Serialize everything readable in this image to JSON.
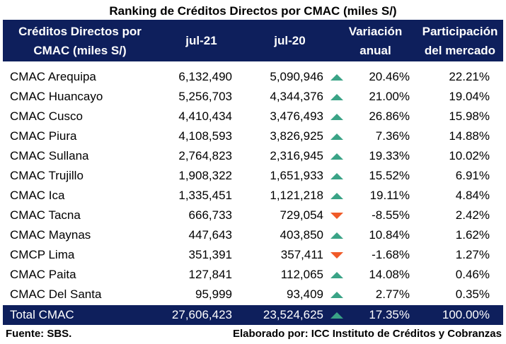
{
  "title": "Ranking de Créditos Directos por CMAC (miles S/)",
  "columns": {
    "name_line1": "Créditos Directos por",
    "name_line2": "CMAC (miles S/)",
    "jul21": "jul-21",
    "jul20": "jul-20",
    "var_line1": "Variación",
    "var_line2": "anual",
    "part_line1": "Participación",
    "part_line2": "del mercado"
  },
  "colors": {
    "header_bg": "#0e1f5c",
    "up": "#3aa386",
    "down": "#f05a28"
  },
  "rows": [
    {
      "name": "CMAC Arequipa",
      "jul21": "6,132,490",
      "jul20": "5,090,946",
      "trend": "up",
      "variation": "20.46%",
      "share": "22.21%"
    },
    {
      "name": "CMAC Huancayo",
      "jul21": "5,256,703",
      "jul20": "4,344,376",
      "trend": "up",
      "variation": "21.00%",
      "share": "19.04%"
    },
    {
      "name": "CMAC Cusco",
      "jul21": "4,410,434",
      "jul20": "3,476,493",
      "trend": "up",
      "variation": "26.86%",
      "share": "15.98%"
    },
    {
      "name": "CMAC Piura",
      "jul21": "4,108,593",
      "jul20": "3,826,925",
      "trend": "up",
      "variation": "7.36%",
      "share": "14.88%"
    },
    {
      "name": "CMAC Sullana",
      "jul21": "2,764,823",
      "jul20": "2,316,945",
      "trend": "up",
      "variation": "19.33%",
      "share": "10.02%"
    },
    {
      "name": "CMAC Trujillo",
      "jul21": "1,908,322",
      "jul20": "1,651,933",
      "trend": "up",
      "variation": "15.52%",
      "share": "6.91%"
    },
    {
      "name": "CMAC Ica",
      "jul21": "1,335,451",
      "jul20": "1,121,218",
      "trend": "up",
      "variation": "19.11%",
      "share": "4.84%"
    },
    {
      "name": "CMAC Tacna",
      "jul21": "666,733",
      "jul20": "729,054",
      "trend": "down",
      "variation": "-8.55%",
      "share": "2.42%"
    },
    {
      "name": "CMAC Maynas",
      "jul21": "447,643",
      "jul20": "403,850",
      "trend": "up",
      "variation": "10.84%",
      "share": "1.62%"
    },
    {
      "name": "CMCP Lima",
      "jul21": "351,391",
      "jul20": "357,411",
      "trend": "down",
      "variation": "-1.68%",
      "share": "1.27%"
    },
    {
      "name": "CMAC Paita",
      "jul21": "127,841",
      "jul20": "112,065",
      "trend": "up",
      "variation": "14.08%",
      "share": "0.46%"
    },
    {
      "name": "CMAC Del Santa",
      "jul21": "95,999",
      "jul20": "93,409",
      "trend": "up",
      "variation": "2.77%",
      "share": "0.35%"
    }
  ],
  "total": {
    "name": "Total CMAC",
    "jul21": "27,606,423",
    "jul20": "23,524,625",
    "trend": "up",
    "variation": "17.35%",
    "share": "100.00%"
  },
  "footer": {
    "source": "Fuente: SBS.",
    "credit": "Elaborado por: ICC Instituto de Créditos y Cobranzas"
  }
}
